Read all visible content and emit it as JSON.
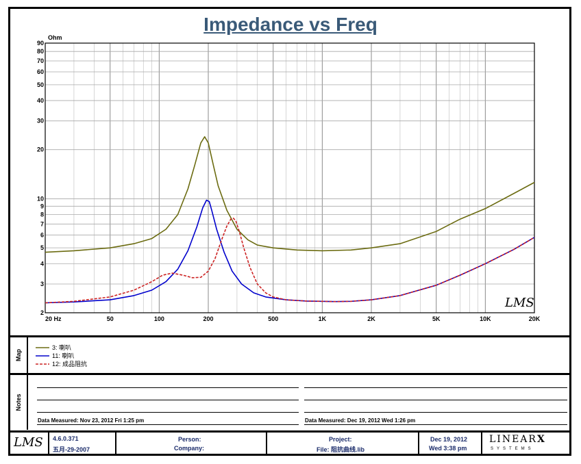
{
  "chart_data": {
    "type": "line",
    "title": "Impedance vs Freq",
    "ylabel": "Ohm",
    "xscale": "log",
    "yscale": "log",
    "xlim": [
      20,
      20000
    ],
    "ylim": [
      2,
      90
    ],
    "x_ticks": [
      {
        "v": 20,
        "label": "20  Hz"
      },
      {
        "v": 50,
        "label": "50"
      },
      {
        "v": 100,
        "label": "100"
      },
      {
        "v": 200,
        "label": "200"
      },
      {
        "v": 500,
        "label": "500"
      },
      {
        "v": 1000,
        "label": "1K"
      },
      {
        "v": 2000,
        "label": "2K"
      },
      {
        "v": 5000,
        "label": "5K"
      },
      {
        "v": 10000,
        "label": "10K"
      },
      {
        "v": 20000,
        "label": "20K"
      }
    ],
    "y_ticks": [
      {
        "v": 2,
        "label": "2"
      },
      {
        "v": 3,
        "label": "3"
      },
      {
        "v": 4,
        "label": "4"
      },
      {
        "v": 5,
        "label": "5"
      },
      {
        "v": 6,
        "label": "6"
      },
      {
        "v": 7,
        "label": "7"
      },
      {
        "v": 8,
        "label": "8"
      },
      {
        "v": 9,
        "label": "9"
      },
      {
        "v": 10,
        "label": "10"
      },
      {
        "v": 20,
        "label": "20"
      },
      {
        "v": 30,
        "label": "30"
      },
      {
        "v": 40,
        "label": "40"
      },
      {
        "v": 50,
        "label": "50"
      },
      {
        "v": 60,
        "label": "60"
      },
      {
        "v": 70,
        "label": "70"
      },
      {
        "v": 80,
        "label": "80"
      },
      {
        "v": 90,
        "label": "90"
      }
    ],
    "grid": true,
    "series": [
      {
        "name": "3:",
        "color": "#6b6b10",
        "dash": false,
        "x": [
          20,
          30,
          50,
          70,
          90,
          110,
          130,
          150,
          165,
          180,
          190,
          200,
          215,
          230,
          260,
          300,
          350,
          400,
          500,
          700,
          1000,
          1500,
          2000,
          3000,
          5000,
          7000,
          10000,
          15000,
          20000
        ],
        "y": [
          4.7,
          4.8,
          5.0,
          5.3,
          5.7,
          6.5,
          8.0,
          11.5,
          16.0,
          22.0,
          24.0,
          22.0,
          16.0,
          12.0,
          8.5,
          6.5,
          5.6,
          5.2,
          5.0,
          4.85,
          4.8,
          4.85,
          5.0,
          5.3,
          6.3,
          7.5,
          8.7,
          10.8,
          12.6
        ]
      },
      {
        "name": "11:",
        "color": "#0000cc",
        "dash": false,
        "x": [
          20,
          30,
          50,
          70,
          90,
          110,
          130,
          150,
          170,
          185,
          195,
          203,
          210,
          225,
          250,
          280,
          320,
          380,
          450,
          600,
          800,
          1000,
          1200,
          1500,
          2000,
          3000,
          5000,
          7000,
          10000,
          15000,
          20000
        ],
        "y": [
          2.3,
          2.33,
          2.4,
          2.55,
          2.75,
          3.1,
          3.7,
          4.8,
          6.7,
          8.8,
          9.8,
          9.6,
          8.5,
          6.5,
          4.7,
          3.6,
          3.0,
          2.65,
          2.5,
          2.4,
          2.36,
          2.35,
          2.34,
          2.35,
          2.4,
          2.55,
          2.95,
          3.4,
          4.0,
          4.9,
          5.8
        ]
      },
      {
        "name": "12:",
        "color": "#cc2222",
        "dash": true,
        "x": [
          20,
          30,
          50,
          70,
          90,
          105,
          120,
          140,
          160,
          180,
          200,
          220,
          240,
          260,
          275,
          285,
          295,
          310,
          330,
          360,
          400,
          450,
          500,
          600,
          800,
          1000,
          1200,
          1500,
          2000,
          3000,
          5000,
          7000,
          10000,
          15000,
          20000
        ],
        "y": [
          2.3,
          2.35,
          2.5,
          2.75,
          3.1,
          3.4,
          3.5,
          3.4,
          3.28,
          3.3,
          3.6,
          4.3,
          5.5,
          6.8,
          7.5,
          7.6,
          7.3,
          6.3,
          5.0,
          3.8,
          3.0,
          2.65,
          2.5,
          2.4,
          2.36,
          2.35,
          2.34,
          2.35,
          2.4,
          2.55,
          2.95,
          3.4,
          4.0,
          4.9,
          5.8
        ]
      }
    ]
  },
  "watermark": "LMS",
  "map_label": "Map",
  "notes_label": "Notes",
  "legend": [
    {
      "label": "3:  喇叭",
      "color": "#6b6b10",
      "dash": false
    },
    {
      "label": "11:  喇叭",
      "color": "#0000cc",
      "dash": false
    },
    {
      "label": "12:  成品阻抗",
      "color": "#cc2222",
      "dash": true
    }
  ],
  "notes": {
    "left_measured": "Data Measured: Nov 23, 2012  Fri  1:25 pm",
    "right_measured": "Data Measured: Dec 19, 2012  Wed  1:26 pm"
  },
  "footer": {
    "logo": "LMS",
    "version": "4.6.0.371",
    "version_date": "五月-29-2007",
    "person_label": "Person:",
    "company_label": "Company:",
    "project_label": "Project:",
    "file_label": "File: 阻抗曲线.lib",
    "date": "Dec 19, 2012",
    "time": "Wed  3:38 pm",
    "brand": "LINEAR",
    "brand_x": "X",
    "brand_sub": "SYSTEMS"
  }
}
